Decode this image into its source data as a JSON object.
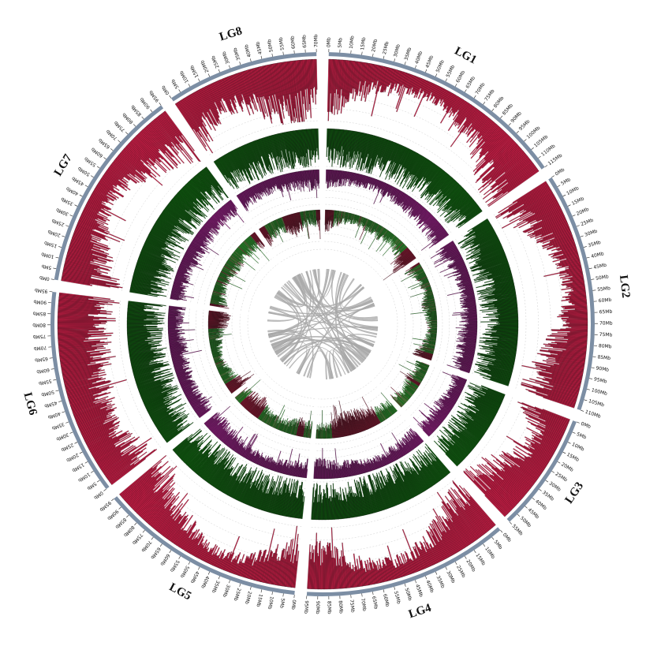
{
  "chart_data": {
    "type": "circos",
    "title": "",
    "chromosomes": [
      {
        "name": "LG1",
        "length_mb": 115,
        "tick_start": 0,
        "tick_step": 5
      },
      {
        "name": "LG2",
        "length_mb": 110,
        "tick_start": 0,
        "tick_step": 5
      },
      {
        "name": "LG3",
        "length_mb": 55,
        "tick_start": 0,
        "tick_step": 5
      },
      {
        "name": "LG4",
        "length_mb": 95,
        "tick_start": 0,
        "tick_step": 5
      },
      {
        "name": "LG5",
        "length_mb": 95,
        "tick_start": 0,
        "tick_step": 5
      },
      {
        "name": "LG6",
        "length_mb": 95,
        "tick_start": 0,
        "tick_step": 5
      },
      {
        "name": "LG7",
        "length_mb": 95,
        "tick_start": 0,
        "tick_step": 5
      },
      {
        "name": "LG8",
        "length_mb": 70,
        "tick_start": 0,
        "tick_step": 5
      }
    ],
    "tick_unit": "Mb",
    "tracks": [
      {
        "id": "track-1",
        "color": "#dc1e4b",
        "kind": "histogram",
        "direction": "inward-from-outer",
        "profile": [
          [
            0.85,
            0.55,
            0.35,
            0.25,
            0.3,
            0.5,
            0.75,
            0.9
          ],
          [
            0.9,
            0.6,
            0.4,
            0.3,
            0.35,
            0.55,
            0.7,
            0.8
          ],
          [
            0.8,
            0.55,
            0.45,
            0.5,
            0.6,
            0.75,
            0.8,
            0.85
          ],
          [
            0.85,
            0.7,
            0.5,
            0.35,
            0.3,
            0.4,
            0.6,
            0.75
          ],
          [
            0.75,
            0.5,
            0.3,
            0.25,
            0.35,
            0.55,
            0.7,
            0.85
          ],
          [
            0.8,
            0.65,
            0.55,
            0.6,
            0.65,
            0.7,
            0.75,
            0.8
          ],
          [
            0.85,
            0.65,
            0.45,
            0.35,
            0.4,
            0.55,
            0.7,
            0.8
          ],
          [
            0.8,
            0.6,
            0.45,
            0.55,
            0.7,
            0.85,
            0.9,
            0.75
          ]
        ]
      },
      {
        "id": "track-2",
        "color": "#0e6b0e",
        "kind": "histogram",
        "direction": "inward-from-outer",
        "profile": [
          [
            0.75,
            0.8,
            0.85,
            0.85,
            0.8,
            0.75,
            0.8,
            0.75
          ],
          [
            0.8,
            0.85,
            0.9,
            0.85,
            0.8,
            0.85,
            0.9,
            0.8
          ],
          [
            0.8,
            0.85,
            0.8,
            0.75,
            0.8,
            0.85,
            0.8,
            0.8
          ],
          [
            0.8,
            0.8,
            0.85,
            0.9,
            0.85,
            0.8,
            0.8,
            0.8
          ],
          [
            0.8,
            0.85,
            0.8,
            0.75,
            0.8,
            0.85,
            0.85,
            0.8
          ],
          [
            0.75,
            0.8,
            0.85,
            0.85,
            0.8,
            0.75,
            0.8,
            0.75
          ],
          [
            0.8,
            0.85,
            0.8,
            0.8,
            0.85,
            0.8,
            0.75,
            0.8
          ],
          [
            0.75,
            0.8,
            0.85,
            0.8,
            0.75,
            0.8,
            0.85,
            0.8
          ]
        ]
      },
      {
        "id": "track-3",
        "color": "#b0209a",
        "kind": "histogram",
        "direction": "inward-from-outer",
        "profile": [
          [
            0.45,
            0.35,
            0.3,
            0.3,
            0.35,
            0.4,
            0.45,
            0.5
          ],
          [
            0.5,
            0.4,
            0.35,
            0.35,
            0.4,
            0.45,
            0.5,
            0.45
          ],
          [
            0.4,
            0.35,
            0.35,
            0.4,
            0.45,
            0.4,
            0.35,
            0.4
          ],
          [
            0.45,
            0.4,
            0.35,
            0.3,
            0.35,
            0.4,
            0.45,
            0.5
          ],
          [
            0.45,
            0.35,
            0.3,
            0.3,
            0.35,
            0.4,
            0.45,
            0.5
          ],
          [
            0.45,
            0.4,
            0.35,
            0.4,
            0.45,
            0.4,
            0.35,
            0.4
          ],
          [
            0.4,
            0.35,
            0.35,
            0.4,
            0.45,
            0.4,
            0.35,
            0.4
          ],
          [
            0.45,
            0.4,
            0.35,
            0.35,
            0.4,
            0.45,
            0.5,
            0.45
          ]
        ]
      },
      {
        "id": "track-4",
        "colors": [
          "#dc1e4b",
          "#3ce43c"
        ],
        "kind": "two-color-histogram",
        "direction": "inward-from-outer",
        "profile": [
          [
            0.5,
            0.3,
            0.2,
            0.25,
            0.3,
            0.2,
            0.35,
            0.6
          ],
          [
            0.4,
            0.25,
            0.2,
            0.3,
            0.25,
            0.2,
            0.3,
            0.45
          ],
          [
            0.35,
            0.25,
            0.3,
            0.4,
            0.3,
            0.25,
            0.3,
            0.35
          ],
          [
            0.3,
            0.35,
            0.4,
            0.5,
            0.55,
            0.45,
            0.35,
            0.3
          ],
          [
            0.35,
            0.4,
            0.3,
            0.25,
            0.3,
            0.45,
            0.4,
            0.35
          ],
          [
            0.55,
            0.35,
            0.25,
            0.2,
            0.25,
            0.3,
            0.45,
            0.5
          ],
          [
            0.4,
            0.3,
            0.25,
            0.3,
            0.35,
            0.3,
            0.35,
            0.4
          ],
          [
            0.45,
            0.35,
            0.3,
            0.4,
            0.5,
            0.35,
            0.3,
            0.45
          ]
        ]
      }
    ],
    "links": {
      "color": "#a8a8a8",
      "count": 70
    },
    "grid": true,
    "legend": "none"
  },
  "colors": {
    "ideogram": "#7c8ea4",
    "grid": "#cfcfcf",
    "text": "#111111"
  }
}
